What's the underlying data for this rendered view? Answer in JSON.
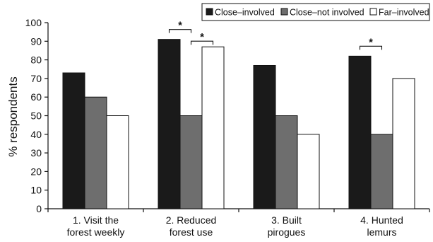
{
  "chart_data": {
    "type": "bar",
    "title": "",
    "xlabel": "",
    "ylabel": "% respondents",
    "ylim": [
      0,
      100
    ],
    "yticks": [
      0,
      10,
      20,
      30,
      40,
      50,
      60,
      70,
      80,
      90,
      100
    ],
    "categories": [
      [
        "1. Visit the",
        "forest weekly"
      ],
      [
        "2. Reduced",
        "forest use"
      ],
      [
        "3. Built",
        "pirogues"
      ],
      [
        "4. Hunted",
        "lemurs"
      ]
    ],
    "series": [
      {
        "name": "Close–involved",
        "color": "#1a1a1a",
        "values": [
          73,
          91,
          77,
          82
        ]
      },
      {
        "name": "Close–not involved",
        "color": "#6e6e6e",
        "values": [
          60,
          50,
          50,
          40
        ]
      },
      {
        "name": "Far–involved",
        "color": "#ffffff",
        "values": [
          50,
          87,
          40,
          70
        ]
      }
    ],
    "legend_position": "top-right",
    "grid": false,
    "significance": [
      {
        "category": 1,
        "from_series": 0,
        "to_series": 1,
        "label": "*"
      },
      {
        "category": 1,
        "from_series": 1,
        "to_series": 2,
        "label": "*"
      },
      {
        "category": 3,
        "from_series": 0,
        "to_series": 1,
        "label": "*"
      }
    ]
  }
}
